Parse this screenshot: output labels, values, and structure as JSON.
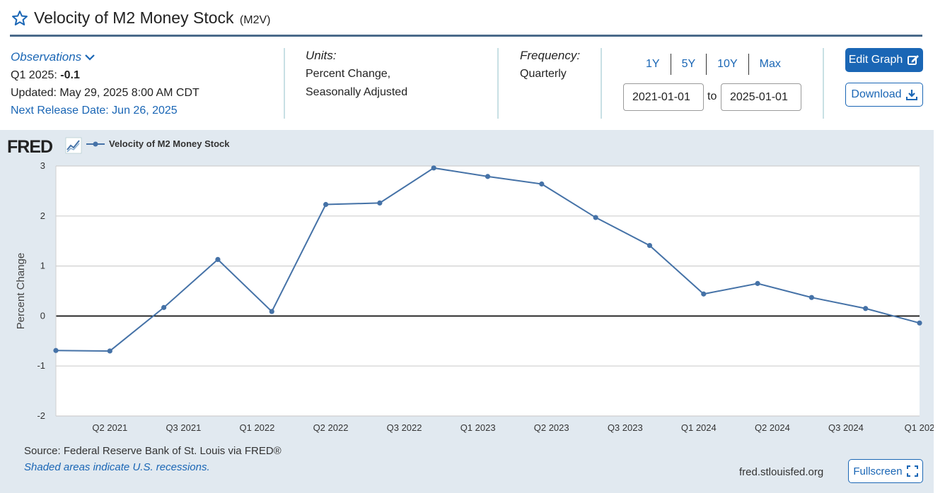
{
  "header": {
    "title": "Velocity of M2 Money Stock",
    "series_id": "(M2V)"
  },
  "observations": {
    "link_label": "Observations",
    "latest_period": "Q1 2025:",
    "latest_value": "-0.1",
    "updated": "Updated: May 29, 2025 8:00 AM CDT",
    "next_release": "Next Release Date: Jun 26, 2025"
  },
  "units": {
    "label": "Units:",
    "line1": "Percent Change,",
    "line2": "Seasonally Adjusted"
  },
  "frequency": {
    "label": "Frequency:",
    "value": "Quarterly"
  },
  "range": {
    "buttons": [
      "1Y",
      "5Y",
      "10Y",
      "Max"
    ],
    "start": "2021-01-01",
    "to_label": "to",
    "end": "2025-01-01"
  },
  "actions": {
    "edit_label": "Edit Graph",
    "download_label": "Download",
    "fullscreen_label": "Fullscreen"
  },
  "footer": {
    "logo": "FRED",
    "source": "Source: Federal Reserve Bank of St. Louis via FRED®",
    "shaded_note": "Shaded areas indicate U.S. recessions.",
    "site": "fred.stlouisfed.org"
  },
  "colors": {
    "accent": "#1a66b5",
    "series": "#4572a7",
    "panel": "#e1e9f0",
    "title_rule": "#4a6a8a"
  },
  "icons": [
    "star-icon",
    "chevron-down-icon",
    "edit-icon",
    "download-icon",
    "fullscreen-icon",
    "fred-trend-icon"
  ],
  "chart_data": {
    "type": "line",
    "title": "",
    "xlabel": "",
    "ylabel": "Percent Change",
    "ylim": [
      -2,
      3
    ],
    "yticks": [
      -2,
      -1,
      0,
      1,
      2,
      3
    ],
    "grid": true,
    "legend_position": "top-left",
    "x_tick_labels": [
      "Q2 2021",
      "Q3 2021",
      "Q1 2022",
      "Q2 2022",
      "Q3 2022",
      "Q1 2023",
      "Q2 2023",
      "Q3 2023",
      "Q1 2024",
      "Q2 2024",
      "Q3 2024",
      "Q1 202"
    ],
    "x": [
      "2021-01-01",
      "2021-04-01",
      "2021-07-01",
      "2021-10-01",
      "2022-01-01",
      "2022-04-01",
      "2022-07-01",
      "2022-10-01",
      "2023-01-01",
      "2023-04-01",
      "2023-07-01",
      "2023-10-01",
      "2024-01-01",
      "2024-04-01",
      "2024-07-01",
      "2024-10-01",
      "2025-01-01"
    ],
    "series": [
      {
        "name": "Velocity of M2 Money Stock",
        "values": [
          -0.69,
          -0.7,
          0.17,
          1.13,
          0.09,
          2.23,
          2.26,
          2.96,
          2.79,
          2.64,
          1.97,
          1.41,
          0.44,
          0.65,
          0.37,
          0.15,
          -0.14
        ]
      }
    ]
  }
}
